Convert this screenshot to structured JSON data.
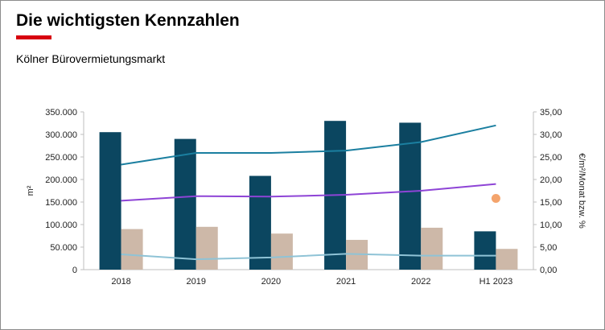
{
  "header": {
    "title": "Die wichtigsten Kennzahlen",
    "subtitle": "Kölner Bürovermietungsmarkt"
  },
  "colors": {
    "accent": "#d7000f",
    "bar_primary": "#0b4660",
    "bar_secondary": "#cdb8a8",
    "line_top": "#1b7fa0",
    "line_mid": "#8e44d6",
    "line_low": "#8fc3d6",
    "point": "#f4a46c"
  },
  "chart_data": {
    "type": "bar",
    "categories": [
      "2018",
      "2019",
      "2020",
      "2021",
      "2022",
      "H1 2023"
    ],
    "ylabel": "m²",
    "y2label": "€/m²/Monat bzw. %",
    "ylim": [
      0,
      350000
    ],
    "y2lim": [
      0,
      35
    ],
    "yticks": [
      "0",
      "50.000",
      "100.000",
      "150.000",
      "200.000",
      "250.000",
      "300.000",
      "350.000"
    ],
    "y2ticks": [
      "0,00",
      "5,00",
      "10,00",
      "15,00",
      "20,00",
      "25,00",
      "30,00",
      "35,00"
    ],
    "bar_series": [
      {
        "values": [
          305000,
          290000,
          208000,
          330000,
          326000,
          85000
        ]
      },
      {
        "values": [
          90000,
          95000,
          80000,
          66000,
          93000,
          46000
        ]
      }
    ],
    "line_series": [
      {
        "axis": "y2",
        "values": [
          23.3,
          25.9,
          25.9,
          26.4,
          28.3,
          32.0
        ]
      },
      {
        "axis": "y2",
        "values": [
          15.3,
          16.3,
          16.2,
          16.6,
          17.5,
          19.0
        ]
      },
      {
        "axis": "y2",
        "values": [
          3.4,
          2.3,
          2.7,
          3.5,
          3.1,
          3.1
        ]
      }
    ],
    "point_series": [
      {
        "axis": "y2",
        "category": "H1 2023",
        "value": 15.8
      }
    ],
    "grid": false,
    "legend": "none"
  }
}
